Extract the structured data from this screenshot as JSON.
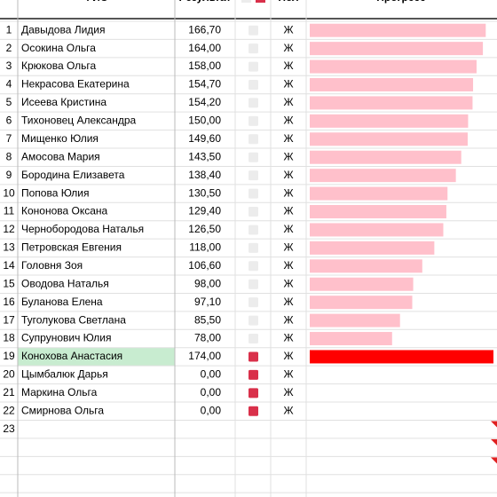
{
  "table": {
    "headers": [
      "ФИО",
      "Результат",
      "Пол",
      "Прогресс"
    ],
    "rows": [
      {
        "n": 1,
        "name": "Давыдова Лидия",
        "result": {
          "value": 166.7,
          "label": "166,70"
        },
        "checked": false,
        "sex": "Ж",
        "highlight": false
      },
      {
        "n": 2,
        "name": "Осокина Ольга",
        "result": {
          "value": 164,
          "label": "164,00"
        },
        "checked": false,
        "sex": "Ж",
        "highlight": false
      },
      {
        "n": 3,
        "name": "Крюкова Ольга",
        "result": {
          "value": 158,
          "label": "158,00"
        },
        "checked": false,
        "sex": "Ж",
        "highlight": false
      },
      {
        "n": 4,
        "name": "Некрасова Екатерина",
        "result": {
          "value": 154.7,
          "label": "154,70"
        },
        "checked": false,
        "sex": "Ж",
        "highlight": false
      },
      {
        "n": 5,
        "name": "Исеева Кристина",
        "result": {
          "value": 154.2,
          "label": "154,20"
        },
        "checked": false,
        "sex": "Ж",
        "highlight": false
      },
      {
        "n": 6,
        "name": "Тихоновец Александра",
        "result": {
          "value": 150,
          "label": "150,00"
        },
        "checked": false,
        "sex": "Ж",
        "highlight": false
      },
      {
        "n": 7,
        "name": "Мищенко Юлия",
        "result": {
          "value": 149.6,
          "label": "149,60"
        },
        "checked": false,
        "sex": "Ж",
        "highlight": false
      },
      {
        "n": 8,
        "name": "Амосова Мария",
        "result": {
          "value": 143.5,
          "label": "143,50"
        },
        "checked": false,
        "sex": "Ж",
        "highlight": false
      },
      {
        "n": 9,
        "name": "Бородина Елизавета",
        "result": {
          "value": 138.4,
          "label": "138,40"
        },
        "checked": false,
        "sex": "Ж",
        "highlight": false
      },
      {
        "n": 10,
        "name": "Попова Юлия",
        "result": {
          "value": 130.5,
          "label": "130,50"
        },
        "checked": false,
        "sex": "Ж",
        "highlight": false
      },
      {
        "n": 11,
        "name": "Кононова Оксана",
        "result": {
          "value": 129.4,
          "label": "129,40"
        },
        "checked": false,
        "sex": "Ж",
        "highlight": false
      },
      {
        "n": 12,
        "name": "Чернобородова Наталья",
        "result": {
          "value": 126.5,
          "label": "126,50"
        },
        "checked": false,
        "sex": "Ж",
        "highlight": false
      },
      {
        "n": 13,
        "name": "Петровская Евгения",
        "result": {
          "value": 118,
          "label": "118,00"
        },
        "checked": false,
        "sex": "Ж",
        "highlight": false
      },
      {
        "n": 14,
        "name": "Головня Зоя",
        "result": {
          "value": 106.6,
          "label": "106,60"
        },
        "checked": false,
        "sex": "Ж",
        "highlight": false
      },
      {
        "n": 15,
        "name": "Оводова Наталья",
        "result": {
          "value": 98,
          "label": "98,00"
        },
        "checked": false,
        "sex": "Ж",
        "highlight": false
      },
      {
        "n": 16,
        "name": "Буланова Елена",
        "result": {
          "value": 97.1,
          "label": "97,10"
        },
        "checked": false,
        "sex": "Ж",
        "highlight": false
      },
      {
        "n": 17,
        "name": "Туголукова Светлана",
        "result": {
          "value": 85.5,
          "label": "85,50"
        },
        "checked": false,
        "sex": "Ж",
        "highlight": false
      },
      {
        "n": 18,
        "name": "Супрунович Юлия",
        "result": {
          "value": 78,
          "label": "78,00"
        },
        "checked": false,
        "sex": "Ж",
        "highlight": false
      },
      {
        "n": 19,
        "name": "Конохова Анастасия",
        "result": {
          "value": 174,
          "label": "174,00"
        },
        "checked": true,
        "sex": "Ж",
        "highlight": true
      },
      {
        "n": 20,
        "name": "Цымбалюк Дарья",
        "result": {
          "value": 0,
          "label": "0,00"
        },
        "checked": true,
        "sex": "Ж",
        "highlight": false
      },
      {
        "n": 21,
        "name": "Маркина Ольга",
        "result": {
          "value": 0,
          "label": "0,00"
        },
        "checked": true,
        "sex": "Ж",
        "highlight": false
      },
      {
        "n": 22,
        "name": "Смирнова Ольга",
        "result": {
          "value": 0,
          "label": "0,00"
        },
        "checked": true,
        "sex": "Ж",
        "highlight": false
      }
    ],
    "empty_row_numbers": [
      23
    ],
    "bar_color": "#ffc0cb",
    "bar_color_highlight": "#ff0000",
    "check_on_color": "#d9304a",
    "check_off_color": "#ececec",
    "highlight_color": "#c8ecd0"
  }
}
